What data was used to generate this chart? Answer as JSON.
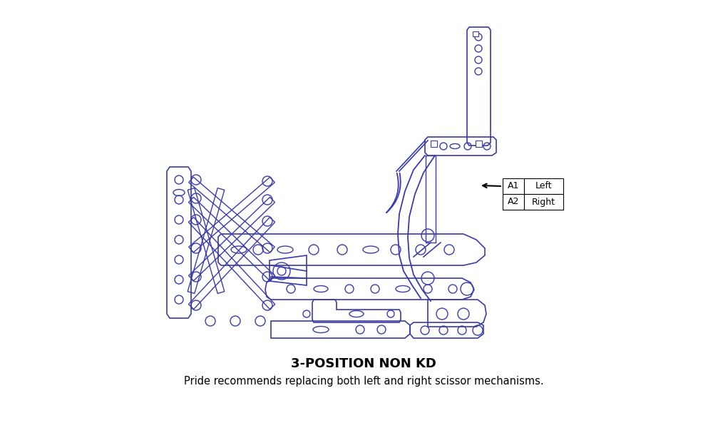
{
  "title": "3-POSITION NON KD",
  "subtitle": "Pride recommends replacing both left and right scissor mechanisms.",
  "diagram_color": "#3a3aaa",
  "bg_color": "#ffffff",
  "legend": [
    {
      "code": "A1",
      "label": "Left"
    },
    {
      "code": "A2",
      "label": "Right"
    }
  ],
  "title_fontsize": 13,
  "subtitle_fontsize": 10.5
}
